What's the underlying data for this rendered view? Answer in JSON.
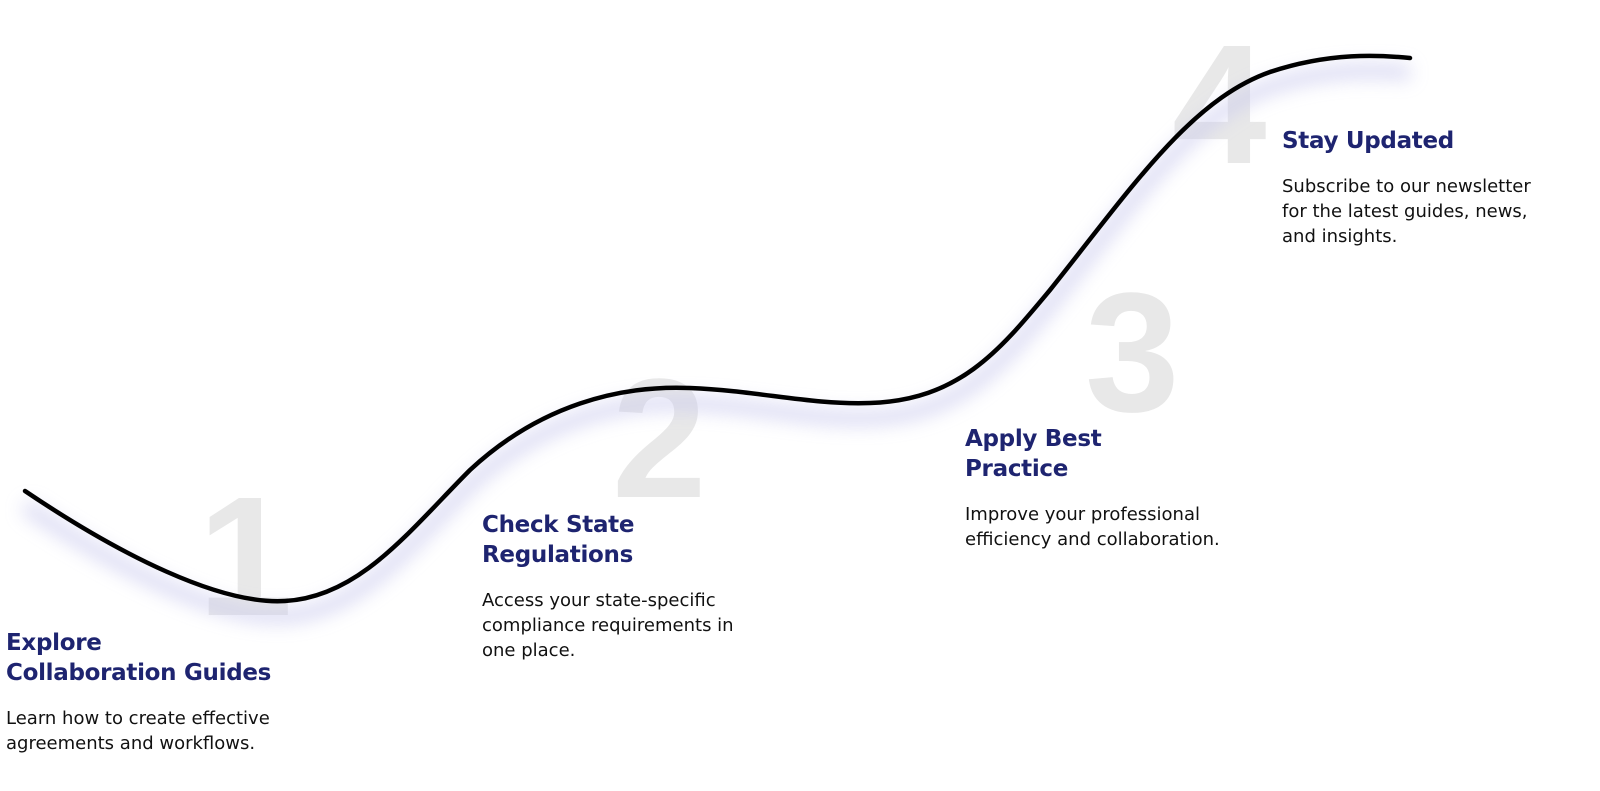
{
  "steps": [
    {
      "number": "1",
      "title_line1": "Explore",
      "title_line2": "Collaboration Guides",
      "desc_line1": "Learn how to create effective",
      "desc_line2": "agreements and workflows.",
      "desc_line3": ""
    },
    {
      "number": "2",
      "title_line1": "Check State",
      "title_line2": "Regulations",
      "desc_line1": "Access your state-specific",
      "desc_line2": "compliance requirements in",
      "desc_line3": "one place."
    },
    {
      "number": "3",
      "title_line1": "Apply Best",
      "title_line2": "Practice",
      "desc_line1": "Improve your professional",
      "desc_line2": "efficiency and collaboration.",
      "desc_line3": ""
    },
    {
      "number": "4",
      "title_line1": "Stay Updated",
      "title_line2": "",
      "desc_line1": "Subscribe to our newsletter",
      "desc_line2": "for the latest guides, news,",
      "desc_line3": "and insights."
    }
  ],
  "colors": {
    "title": "#1e2470",
    "curve": "#000000",
    "number": "#e8e8e8",
    "shadow": "#c9c9ee"
  }
}
